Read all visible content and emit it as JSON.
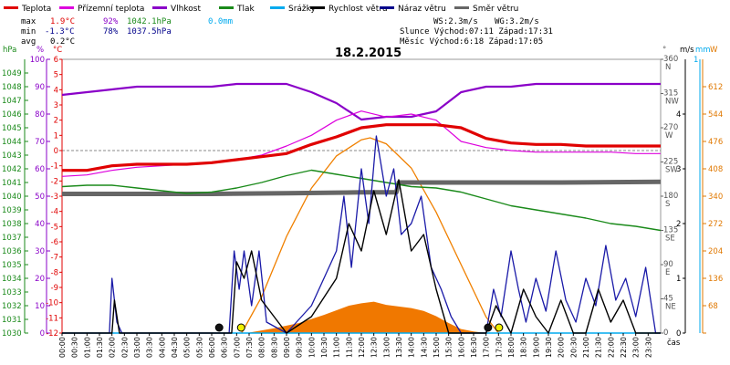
{
  "title": "18.2.2015",
  "legend": [
    {
      "label": "Teplota",
      "color": "#e00000"
    },
    {
      "label": "Přízemní teplota",
      "color": "#dd00dd"
    },
    {
      "label": "Vlhkost",
      "color": "#8a00c8"
    },
    {
      "label": "Tlak",
      "color": "#1a8a1a"
    },
    {
      "label": "Srážky",
      "color": "#00aaee"
    },
    {
      "label": "Rychlost větru",
      "color": "#000000"
    },
    {
      "label": "Náraz větru",
      "color": "#00008b"
    },
    {
      "label": "Směr větru",
      "color": "#666666"
    }
  ],
  "stats": {
    "max_label": "max",
    "min_label": "min",
    "avg_label": "avg",
    "max_temp": "1.9°C",
    "max_hum": "92%",
    "max_press": "1042.1hPa",
    "max_rain": "0.0mm",
    "min_temp": "-1.3°C",
    "min_hum": "78%",
    "min_press": "1037.5hPa",
    "avg_temp": "0.2°C",
    "ws": "WS:2.3m/s",
    "wg": "WG:3.2m/s",
    "sun": "Slunce Východ:07:11  Západ:17:31",
    "moon": "Měsíc  Východ:6:18   Západ:17:05"
  },
  "axis_units": {
    "press": "hPa",
    "hum": "%",
    "temp": "°C",
    "dir": "°",
    "wind": "m/s",
    "rain": "mm",
    "solar": "W",
    "time": "čas"
  },
  "chart_data": {
    "type": "line",
    "title": "18.2.2015",
    "x_ticks": [
      "00:00",
      "00:30",
      "01:00",
      "01:30",
      "02:00",
      "02:30",
      "03:00",
      "03:30",
      "04:00",
      "04:30",
      "05:00",
      "05:30",
      "06:00",
      "06:30",
      "07:00",
      "07:30",
      "08:00",
      "08:30",
      "09:00",
      "09:30",
      "10:00",
      "10:30",
      "11:00",
      "11:30",
      "12:00",
      "12:30",
      "13:00",
      "13:30",
      "14:00",
      "14:30",
      "15:00",
      "15:30",
      "16:00",
      "16:30",
      "17:00",
      "17:30",
      "18:00",
      "18:30",
      "19:00",
      "19:30",
      "20:00",
      "20:30",
      "21:00",
      "21:30",
      "22:00",
      "22:30",
      "23:00",
      "23:30"
    ],
    "axes": {
      "pressure": {
        "unit": "hPa",
        "range": [
          1030,
          1050
        ],
        "ticks": [
          1030,
          1031,
          1032,
          1033,
          1034,
          1035,
          1036,
          1037,
          1038,
          1039,
          1040,
          1041,
          1042,
          1043,
          1044,
          1045,
          1046,
          1047,
          1048,
          1049
        ]
      },
      "humidity": {
        "unit": "%",
        "range": [
          0,
          100
        ],
        "ticks": [
          0,
          10,
          20,
          30,
          40,
          50,
          60,
          70,
          80,
          90,
          100
        ]
      },
      "temperature": {
        "unit": "°C",
        "range": [
          -12,
          6
        ],
        "ticks": [
          -12,
          -11,
          -10,
          -9,
          -8,
          -7,
          -6,
          -5,
          -4,
          -3,
          -2,
          -1,
          0,
          1,
          2,
          3,
          4,
          5,
          6
        ]
      },
      "direction": {
        "unit": "°",
        "range": [
          0,
          360
        ],
        "ticks": [
          0,
          45,
          90,
          135,
          180,
          225,
          270,
          315,
          360
        ],
        "tick_labels": [
          "0",
          "45 NE",
          "90 E",
          "135 SE",
          "180 S",
          "225 SW",
          "270 W",
          "315 NW",
          "360 N"
        ]
      },
      "wind": {
        "unit": "m/s",
        "range": [
          0,
          5
        ],
        "ticks": [
          0,
          1,
          2,
          3,
          4
        ],
        "tick_labels": [
          "0",
          "1",
          "2",
          "3",
          "4"
        ]
      },
      "solar": {
        "unit": "W",
        "range": [
          0,
          680
        ],
        "ticks": [
          0,
          68,
          136,
          204,
          272,
          340,
          408,
          476,
          544,
          612
        ]
      }
    },
    "series": [
      {
        "name": "Teplota",
        "axis": "temperature",
        "x": [
          0,
          1,
          2,
          3,
          4,
          5,
          6,
          7,
          8,
          9,
          10,
          11,
          12,
          13,
          14,
          15,
          16,
          17,
          18,
          19,
          20,
          21,
          22,
          23,
          24
        ],
        "values": [
          -1.3,
          -1.3,
          -1.0,
          -0.9,
          -0.9,
          -0.9,
          -0.8,
          -0.6,
          -0.4,
          -0.2,
          0.4,
          0.9,
          1.5,
          1.7,
          1.7,
          1.7,
          1.5,
          0.8,
          0.5,
          0.4,
          0.4,
          0.3,
          0.3,
          0.3,
          0.3
        ]
      },
      {
        "name": "Přízemní teplota",
        "axis": "temperature",
        "x": [
          0,
          1,
          2,
          3,
          4,
          5,
          6,
          7,
          8,
          9,
          10,
          11,
          12,
          13,
          14,
          15,
          16,
          17,
          18,
          19,
          20,
          21,
          22,
          23,
          24
        ],
        "values": [
          -1.7,
          -1.6,
          -1.3,
          -1.1,
          -1.0,
          -0.9,
          -0.8,
          -0.6,
          -0.3,
          0.3,
          1.0,
          2.0,
          2.6,
          2.2,
          2.4,
          2.0,
          0.6,
          0.2,
          0.0,
          -0.1,
          -0.1,
          -0.1,
          -0.1,
          -0.2,
          -0.2
        ]
      },
      {
        "name": "Vlhkost",
        "axis": "humidity",
        "x": [
          0,
          1,
          2,
          3,
          4,
          5,
          6,
          7,
          8,
          9,
          10,
          11,
          12,
          13,
          14,
          15,
          16,
          17,
          18,
          19,
          20,
          21,
          22,
          23,
          24
        ],
        "values": [
          87,
          88,
          89,
          90,
          90,
          90,
          90,
          91,
          91,
          91,
          88,
          84,
          78,
          79,
          79,
          81,
          88,
          90,
          90,
          91,
          91,
          91,
          91,
          91,
          91
        ]
      },
      {
        "name": "Tlak",
        "axis": "pressure",
        "x": [
          0,
          1,
          2,
          3,
          4,
          5,
          6,
          7,
          8,
          9,
          10,
          11,
          12,
          13,
          14,
          15,
          16,
          17,
          18,
          19,
          20,
          21,
          22,
          23,
          24
        ],
        "values": [
          1040.7,
          1040.8,
          1040.8,
          1040.6,
          1040.4,
          1040.2,
          1040.3,
          1040.6,
          1041.0,
          1041.5,
          1041.9,
          1041.6,
          1041.3,
          1041.0,
          1040.7,
          1040.6,
          1040.3,
          1039.8,
          1039.3,
          1039.0,
          1038.7,
          1038.4,
          1038.0,
          1037.8,
          1037.5
        ]
      },
      {
        "name": "Směr větru",
        "axis": "direction",
        "x": [
          0,
          3,
          6,
          9,
          12,
          13.4,
          13.5,
          16,
          20,
          24
        ],
        "values": [
          183,
          183,
          183,
          184,
          185,
          185,
          198,
          198,
          198,
          199
        ]
      },
      {
        "name": "Rychlost větru",
        "axis": "wind",
        "x": [
          0,
          2.0,
          2.1,
          2.3,
          6.8,
          7.0,
          7.3,
          7.6,
          8.0,
          9.0,
          10.0,
          11.0,
          11.5,
          12.0,
          12.5,
          13.0,
          13.5,
          14.0,
          14.5,
          15.0,
          15.5,
          16.0,
          17.0,
          17.4,
          18.0,
          18.5,
          19.0,
          19.5,
          20.0,
          20.5,
          21.0,
          21.5,
          22.0,
          22.5,
          23.0,
          23.5,
          24
        ],
        "values": [
          0,
          0,
          0.6,
          0,
          0,
          1.3,
          1.0,
          1.5,
          0.6,
          0,
          0.3,
          1.0,
          2.0,
          1.5,
          2.6,
          1.8,
          2.8,
          1.5,
          1.8,
          0.8,
          0,
          0,
          0,
          0.5,
          0,
          0.8,
          0.3,
          0,
          0.6,
          0,
          0,
          0.8,
          0.2,
          0.6,
          0,
          0,
          0
        ]
      },
      {
        "name": "Náraz větru",
        "axis": "wind",
        "x": [
          0,
          1.9,
          2.0,
          2.2,
          2.4,
          6.7,
          6.9,
          7.1,
          7.3,
          7.6,
          7.9,
          8.2,
          9.0,
          10.0,
          11.0,
          11.3,
          11.6,
          12.0,
          12.3,
          12.6,
          13.0,
          13.3,
          13.6,
          14.0,
          14.4,
          14.8,
          15.2,
          15.6,
          16.0,
          17.0,
          17.3,
          17.6,
          18.0,
          18.3,
          18.6,
          19.0,
          19.4,
          19.8,
          20.2,
          20.6,
          21.0,
          21.4,
          21.8,
          22.2,
          22.6,
          23.0,
          23.4,
          23.8,
          24
        ],
        "values": [
          0,
          0,
          1.0,
          0.2,
          0,
          0,
          1.5,
          0.8,
          1.5,
          0.5,
          1.5,
          0.2,
          0,
          0.5,
          1.5,
          2.5,
          1.2,
          3.0,
          2.0,
          3.6,
          2.5,
          3.0,
          1.8,
          2.0,
          2.5,
          1.2,
          0.8,
          0.3,
          0,
          0,
          0.8,
          0.3,
          1.5,
          0.8,
          0.2,
          1.0,
          0.4,
          1.5,
          0.6,
          0.2,
          1.0,
          0.5,
          1.6,
          0.6,
          1.0,
          0.3,
          1.2,
          0,
          0
        ]
      },
      {
        "name": "Srážky",
        "axis": "rain",
        "x": [
          0,
          24
        ],
        "values": [
          0,
          0
        ]
      },
      {
        "name": "Sluneční záření",
        "axis": "solar",
        "x": [
          7.4,
          8.5,
          9.5,
          10.5,
          11.5,
          12.0,
          12.5,
          13.0,
          13.5,
          14.0,
          14.5,
          15.0,
          15.5,
          16.0,
          16.5,
          17.0
        ],
        "values": [
          0,
          12,
          25,
          45,
          68,
          74,
          78,
          70,
          66,
          62,
          55,
          42,
          25,
          10,
          4,
          0
        ]
      },
      {
        "name": "Teoretické záření",
        "axis": "solar",
        "x": [
          7.2,
          8.0,
          9.0,
          10.0,
          11.0,
          12.0,
          12.35,
          13.0,
          14.0,
          15.0,
          16.0,
          17.0,
          17.5
        ],
        "values": [
          0,
          90,
          240,
          360,
          440,
          480,
          485,
          470,
          410,
          300,
          170,
          40,
          0
        ]
      }
    ],
    "events": [
      {
        "name": "moonrise",
        "x": 6.3
      },
      {
        "name": "sunrise",
        "x": 7.18
      },
      {
        "name": "moonset",
        "x": 17.08
      },
      {
        "name": "sunset",
        "x": 17.52
      }
    ]
  }
}
